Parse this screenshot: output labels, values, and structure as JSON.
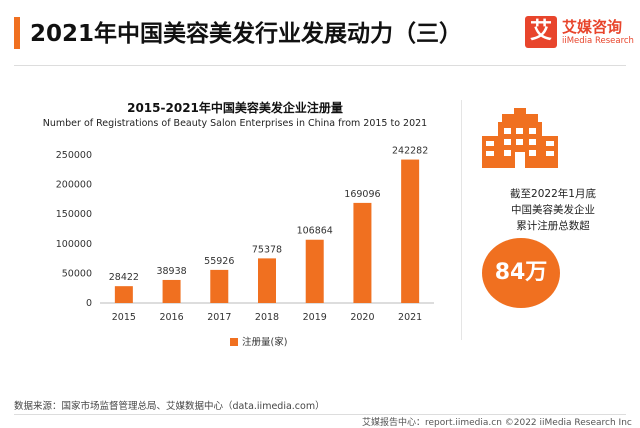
{
  "header": {
    "title": "2021年中国美容美发行业发展动力（三）",
    "logo_mark": "艾",
    "logo_name": "艾媒咨询",
    "logo_sub": "iiMedia Research"
  },
  "chart_data": {
    "type": "bar",
    "title": "2015-2021年中国美容美发企业注册量",
    "subtitle": "Number of Registrations of Beauty Salon Enterprises in China from 2015 to 2021",
    "categories": [
      "2015",
      "2016",
      "2017",
      "2018",
      "2019",
      "2020",
      "2021"
    ],
    "series": [
      {
        "name": "注册量(家)",
        "values": [
          28422,
          38938,
          55926,
          75378,
          106864,
          169096,
          242282
        ]
      }
    ],
    "ylim": [
      0,
      250000
    ],
    "yticks": [
      "0",
      "50000",
      "100000",
      "150000",
      "200000",
      "250000"
    ],
    "grid": false,
    "legend_position": "bottom",
    "bar_color": "#f07020"
  },
  "side_panel": {
    "icon": "building-icon",
    "line1": "截至2022年1月底",
    "line2": "中国美容美发企业",
    "line3": "累计注册总数超",
    "badge": "84万"
  },
  "source": "数据来源：国家市场监督管理总局、艾媒数据中心（data.iimedia.com）",
  "footer": "艾媒报告中心：report.iimedia.cn    ©2022  iiMedia Research  Inc"
}
